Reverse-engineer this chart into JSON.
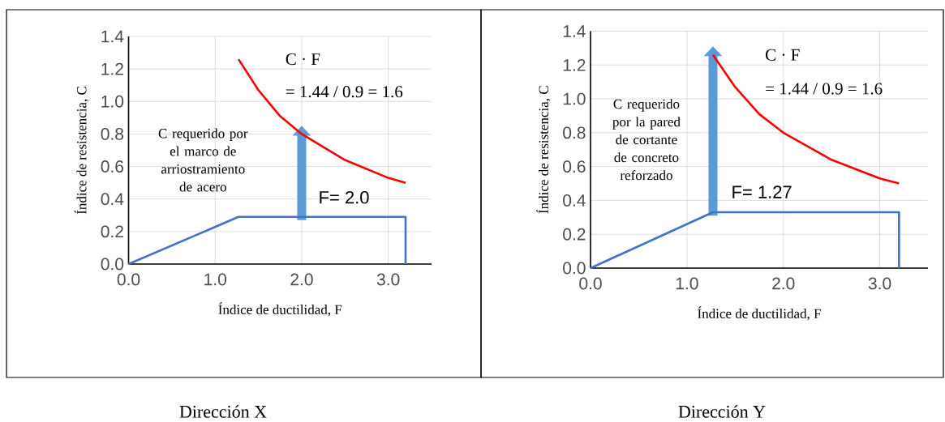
{
  "chart_data": [
    {
      "type": "line",
      "title": "Dirección X",
      "xlabel": "Índice de ductilidad, F",
      "ylabel": "Índice de resistencia, C",
      "xlim": [
        0,
        3.5
      ],
      "ylim": [
        0,
        1.4
      ],
      "xticks": [
        {
          "value": 0,
          "label": "0.0"
        },
        {
          "value": 1,
          "label": "1.0"
        },
        {
          "value": 2,
          "label": "2.0"
        },
        {
          "value": 3,
          "label": "3.0"
        }
      ],
      "yticks": [
        {
          "value": 0,
          "label": "0.0"
        },
        {
          "value": 0.2,
          "label": "0.2"
        },
        {
          "value": 0.4,
          "label": "0.4"
        },
        {
          "value": 0.6,
          "label": "0.6"
        },
        {
          "value": 0.8,
          "label": "0.8"
        },
        {
          "value": 1.0,
          "label": "1.0"
        },
        {
          "value": 1.2,
          "label": "1.2"
        },
        {
          "value": 1.4,
          "label": "1.4"
        }
      ],
      "grid": true,
      "marker": "none",
      "line_style": "solid",
      "series": [
        {
          "color": "#ff0000",
          "x": [
            1.27,
            1.5,
            1.75,
            2.0,
            2.5,
            3.0,
            3.2
          ],
          "values": [
            1.26,
            1.07,
            0.91,
            0.8,
            0.64,
            0.53,
            0.5
          ]
        },
        {
          "color": "#4472c4",
          "x": [
            0,
            1.27,
            3.2,
            3.2
          ],
          "values": [
            0,
            0.29,
            0.29,
            0
          ]
        }
      ],
      "annotations": [
        "C requerido por el marco de arriostramiento de acero",
        "C · F",
        "= 1.44 / 0.9 = 1.6",
        {
          "text": "F= 2.0",
          "x": 2.0,
          "y": 0.29
        }
      ]
    },
    {
      "type": "line",
      "title": "Dirección Y",
      "xlabel": "Índice de ductilidad, F",
      "ylabel": "Índice de resistencia, C",
      "xlim": [
        0,
        3.5
      ],
      "ylim": [
        0,
        1.4
      ],
      "xticks": [
        {
          "value": 0,
          "label": "0.0"
        },
        {
          "value": 1,
          "label": "1.0"
        },
        {
          "value": 2,
          "label": "2.0"
        },
        {
          "value": 3,
          "label": "3.0"
        }
      ],
      "yticks": [
        {
          "value": 0,
          "label": "0.0"
        },
        {
          "value": 0.2,
          "label": "0.2"
        },
        {
          "value": 0.4,
          "label": "0.4"
        },
        {
          "value": 0.6,
          "label": "0.6"
        },
        {
          "value": 0.8,
          "label": "0.8"
        },
        {
          "value": 1.0,
          "label": "1.0"
        },
        {
          "value": 1.2,
          "label": "1.2"
        },
        {
          "value": 1.4,
          "label": "1.4"
        }
      ],
      "grid": true,
      "marker": "none",
      "line_style": "solid",
      "series": [
        {
          "color": "#ff0000",
          "x": [
            1.27,
            1.5,
            1.75,
            2.0,
            2.5,
            3.0,
            3.2
          ],
          "values": [
            1.26,
            1.07,
            0.91,
            0.8,
            0.64,
            0.53,
            0.5
          ]
        },
        {
          "color": "#4472c4",
          "x": [
            0,
            1.27,
            3.2,
            3.2
          ],
          "values": [
            0,
            0.33,
            0.33,
            0
          ]
        }
      ],
      "annotations": [
        "C requerido por la pared de cortante de concreto reforzado",
        "C · F",
        "= 1.44 / 0.9 = 1.6",
        {
          "text": "F= 1.27",
          "x": 1.27,
          "y": 0.33
        }
      ]
    }
  ]
}
